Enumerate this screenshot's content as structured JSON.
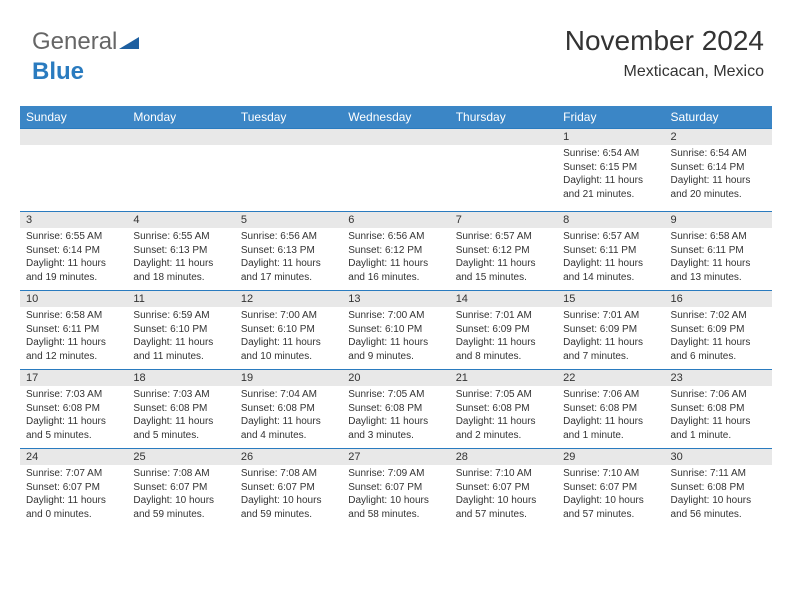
{
  "brand": {
    "part1": "General",
    "part2": "Blue"
  },
  "title": "November 2024",
  "location": "Mexticacan, Mexico",
  "colors": {
    "header_bg": "#3b86c6",
    "band_bg": "#e8e8e8",
    "rule": "#2a7bbf",
    "text": "#333333"
  },
  "day_headers": [
    "Sunday",
    "Monday",
    "Tuesday",
    "Wednesday",
    "Thursday",
    "Friday",
    "Saturday"
  ],
  "weeks": [
    [
      {
        "n": "",
        "lines": [
          "",
          "",
          "",
          ""
        ]
      },
      {
        "n": "",
        "lines": [
          "",
          "",
          "",
          ""
        ]
      },
      {
        "n": "",
        "lines": [
          "",
          "",
          "",
          ""
        ]
      },
      {
        "n": "",
        "lines": [
          "",
          "",
          "",
          ""
        ]
      },
      {
        "n": "",
        "lines": [
          "",
          "",
          "",
          ""
        ]
      },
      {
        "n": "1",
        "lines": [
          "Sunrise: 6:54 AM",
          "Sunset: 6:15 PM",
          "Daylight: 11 hours",
          "and 21 minutes."
        ]
      },
      {
        "n": "2",
        "lines": [
          "Sunrise: 6:54 AM",
          "Sunset: 6:14 PM",
          "Daylight: 11 hours",
          "and 20 minutes."
        ]
      }
    ],
    [
      {
        "n": "3",
        "lines": [
          "Sunrise: 6:55 AM",
          "Sunset: 6:14 PM",
          "Daylight: 11 hours",
          "and 19 minutes."
        ]
      },
      {
        "n": "4",
        "lines": [
          "Sunrise: 6:55 AM",
          "Sunset: 6:13 PM",
          "Daylight: 11 hours",
          "and 18 minutes."
        ]
      },
      {
        "n": "5",
        "lines": [
          "Sunrise: 6:56 AM",
          "Sunset: 6:13 PM",
          "Daylight: 11 hours",
          "and 17 minutes."
        ]
      },
      {
        "n": "6",
        "lines": [
          "Sunrise: 6:56 AM",
          "Sunset: 6:12 PM",
          "Daylight: 11 hours",
          "and 16 minutes."
        ]
      },
      {
        "n": "7",
        "lines": [
          "Sunrise: 6:57 AM",
          "Sunset: 6:12 PM",
          "Daylight: 11 hours",
          "and 15 minutes."
        ]
      },
      {
        "n": "8",
        "lines": [
          "Sunrise: 6:57 AM",
          "Sunset: 6:11 PM",
          "Daylight: 11 hours",
          "and 14 minutes."
        ]
      },
      {
        "n": "9",
        "lines": [
          "Sunrise: 6:58 AM",
          "Sunset: 6:11 PM",
          "Daylight: 11 hours",
          "and 13 minutes."
        ]
      }
    ],
    [
      {
        "n": "10",
        "lines": [
          "Sunrise: 6:58 AM",
          "Sunset: 6:11 PM",
          "Daylight: 11 hours",
          "and 12 minutes."
        ]
      },
      {
        "n": "11",
        "lines": [
          "Sunrise: 6:59 AM",
          "Sunset: 6:10 PM",
          "Daylight: 11 hours",
          "and 11 minutes."
        ]
      },
      {
        "n": "12",
        "lines": [
          "Sunrise: 7:00 AM",
          "Sunset: 6:10 PM",
          "Daylight: 11 hours",
          "and 10 minutes."
        ]
      },
      {
        "n": "13",
        "lines": [
          "Sunrise: 7:00 AM",
          "Sunset: 6:10 PM",
          "Daylight: 11 hours",
          "and 9 minutes."
        ]
      },
      {
        "n": "14",
        "lines": [
          "Sunrise: 7:01 AM",
          "Sunset: 6:09 PM",
          "Daylight: 11 hours",
          "and 8 minutes."
        ]
      },
      {
        "n": "15",
        "lines": [
          "Sunrise: 7:01 AM",
          "Sunset: 6:09 PM",
          "Daylight: 11 hours",
          "and 7 minutes."
        ]
      },
      {
        "n": "16",
        "lines": [
          "Sunrise: 7:02 AM",
          "Sunset: 6:09 PM",
          "Daylight: 11 hours",
          "and 6 minutes."
        ]
      }
    ],
    [
      {
        "n": "17",
        "lines": [
          "Sunrise: 7:03 AM",
          "Sunset: 6:08 PM",
          "Daylight: 11 hours",
          "and 5 minutes."
        ]
      },
      {
        "n": "18",
        "lines": [
          "Sunrise: 7:03 AM",
          "Sunset: 6:08 PM",
          "Daylight: 11 hours",
          "and 5 minutes."
        ]
      },
      {
        "n": "19",
        "lines": [
          "Sunrise: 7:04 AM",
          "Sunset: 6:08 PM",
          "Daylight: 11 hours",
          "and 4 minutes."
        ]
      },
      {
        "n": "20",
        "lines": [
          "Sunrise: 7:05 AM",
          "Sunset: 6:08 PM",
          "Daylight: 11 hours",
          "and 3 minutes."
        ]
      },
      {
        "n": "21",
        "lines": [
          "Sunrise: 7:05 AM",
          "Sunset: 6:08 PM",
          "Daylight: 11 hours",
          "and 2 minutes."
        ]
      },
      {
        "n": "22",
        "lines": [
          "Sunrise: 7:06 AM",
          "Sunset: 6:08 PM",
          "Daylight: 11 hours",
          "and 1 minute."
        ]
      },
      {
        "n": "23",
        "lines": [
          "Sunrise: 7:06 AM",
          "Sunset: 6:08 PM",
          "Daylight: 11 hours",
          "and 1 minute."
        ]
      }
    ],
    [
      {
        "n": "24",
        "lines": [
          "Sunrise: 7:07 AM",
          "Sunset: 6:07 PM",
          "Daylight: 11 hours",
          "and 0 minutes."
        ]
      },
      {
        "n": "25",
        "lines": [
          "Sunrise: 7:08 AM",
          "Sunset: 6:07 PM",
          "Daylight: 10 hours",
          "and 59 minutes."
        ]
      },
      {
        "n": "26",
        "lines": [
          "Sunrise: 7:08 AM",
          "Sunset: 6:07 PM",
          "Daylight: 10 hours",
          "and 59 minutes."
        ]
      },
      {
        "n": "27",
        "lines": [
          "Sunrise: 7:09 AM",
          "Sunset: 6:07 PM",
          "Daylight: 10 hours",
          "and 58 minutes."
        ]
      },
      {
        "n": "28",
        "lines": [
          "Sunrise: 7:10 AM",
          "Sunset: 6:07 PM",
          "Daylight: 10 hours",
          "and 57 minutes."
        ]
      },
      {
        "n": "29",
        "lines": [
          "Sunrise: 7:10 AM",
          "Sunset: 6:07 PM",
          "Daylight: 10 hours",
          "and 57 minutes."
        ]
      },
      {
        "n": "30",
        "lines": [
          "Sunrise: 7:11 AM",
          "Sunset: 6:08 PM",
          "Daylight: 10 hours",
          "and 56 minutes."
        ]
      }
    ]
  ]
}
